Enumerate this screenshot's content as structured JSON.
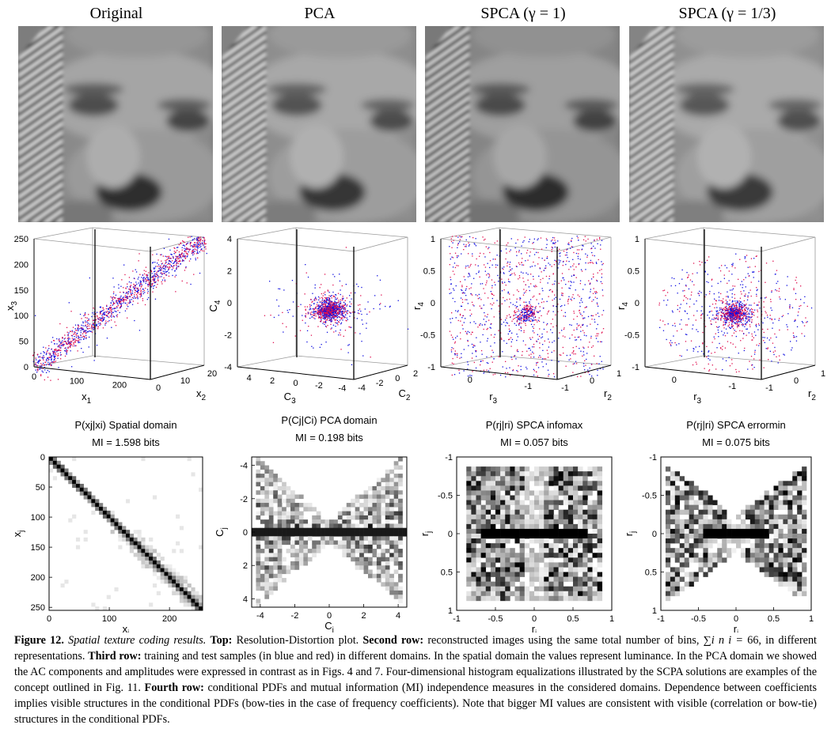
{
  "columns": [
    {
      "id": "original",
      "title": "Original"
    },
    {
      "id": "pca",
      "title": "PCA"
    },
    {
      "id": "spca1",
      "title": "SPCA (γ = 1)"
    },
    {
      "id": "spca13",
      "title": "SPCA (γ = 1/3)"
    }
  ],
  "chart_data": [
    {
      "type": "scatter",
      "title": "",
      "xlabel": "x1",
      "ylabel": "x3",
      "zlabel": "x2",
      "xticks": [
        "0",
        "100",
        "200"
      ],
      "yticks": [
        "0",
        "50",
        "100",
        "150",
        "200",
        "250"
      ],
      "zticks": [
        "0",
        "10",
        "20"
      ],
      "ylim": [
        0,
        255
      ],
      "xlim": [
        0,
        255
      ],
      "zlim": [
        0,
        25
      ],
      "series": [
        {
          "values": []
        },
        {
          "values": []
        }
      ],
      "pattern": "diagonal"
    },
    {
      "type": "scatter",
      "title": "",
      "xlabel": "C3",
      "ylabel": "C4",
      "zlabel": "C2",
      "xticks": [
        "4",
        "2",
        "0",
        "-2",
        "-4"
      ],
      "yticks": [
        "4",
        "2",
        "0",
        "-2",
        "-4"
      ],
      "zticks": [
        "-4",
        "-2",
        "0",
        "2"
      ],
      "ylim": [
        -4.8,
        4.8
      ],
      "xlim": [
        -4.8,
        4.8
      ],
      "zlim": [
        -4.8,
        2.8
      ],
      "series": [
        {
          "values": []
        },
        {
          "values": []
        }
      ],
      "pattern": "center"
    },
    {
      "type": "scatter",
      "title": "",
      "xlabel": "r3",
      "ylabel": "r4",
      "zlabel": "r2",
      "xticks": [
        "0",
        "-1"
      ],
      "yticks": [
        "1",
        "0.5",
        "0",
        "-0.5",
        "-1"
      ],
      "zticks": [
        "-1",
        "0",
        "1"
      ],
      "ylim": [
        -1,
        1
      ],
      "xlim": [
        -1,
        1
      ],
      "zlim": [
        -1,
        1
      ],
      "series": [
        {
          "values": []
        },
        {
          "values": []
        }
      ],
      "pattern": "uniform"
    },
    {
      "type": "scatter",
      "title": "",
      "xlabel": "r3",
      "ylabel": "r4",
      "zlabel": "r2",
      "xticks": [
        "0",
        "-1"
      ],
      "yticks": [
        "1",
        "0.5",
        "0",
        "-0.5",
        "-1"
      ],
      "zticks": [
        "-1",
        "0",
        "1"
      ],
      "ylim": [
        -1,
        1
      ],
      "xlim": [
        -1,
        1
      ],
      "zlim": [
        -1,
        1
      ],
      "series": [
        {
          "values": []
        },
        {
          "values": []
        }
      ],
      "pattern": "concentrated"
    },
    {
      "type": "heatmap",
      "title": "P(xj|xi) Spatial domain",
      "mi": "MI = 1.598 bits",
      "xlabel": "xi",
      "ylabel": "xj",
      "xticks": [
        "0",
        "100",
        "200"
      ],
      "yticks": [
        "0",
        "50",
        "100",
        "150",
        "200",
        "250"
      ],
      "xlim": [
        0,
        255
      ],
      "ylim": [
        0,
        255
      ],
      "pattern": "diagonal"
    },
    {
      "type": "heatmap",
      "title": "P(Cj|Ci) PCA domain",
      "mi": "MI = 0.198 bits",
      "xlabel": "Ci",
      "ylabel": "Cj",
      "xticks": [
        "-4",
        "-2",
        "0",
        "2",
        "4"
      ],
      "yticks": [
        "-4",
        "-2",
        "0",
        "2",
        "4"
      ],
      "xlim": [
        -4.5,
        4.5
      ],
      "ylim": [
        -4.5,
        4.5
      ],
      "pattern": "bowtie-wide"
    },
    {
      "type": "heatmap",
      "title": "P(rj|ri) SPCA infomax",
      "mi": "MI = 0.057 bits",
      "xlabel": "ri",
      "ylabel": "rj",
      "xticks": [
        "-1",
        "-0.5",
        "0",
        "0.5",
        "1"
      ],
      "yticks": [
        "-1",
        "-0.5",
        "0",
        "0.5",
        "1"
      ],
      "xlim": [
        -1,
        1
      ],
      "ylim": [
        -1,
        1
      ],
      "pattern": "uniform-line"
    },
    {
      "type": "heatmap",
      "title": "P(rj|ri) SPCA errormin",
      "mi": "MI = 0.075 bits",
      "xlabel": "ri",
      "ylabel": "rj",
      "xticks": [
        "-1",
        "-0.5",
        "0",
        "0.5",
        "1"
      ],
      "yticks": [
        "-1",
        "-0.5",
        "0",
        "0.5",
        "1"
      ],
      "xlim": [
        -1,
        1
      ],
      "ylim": [
        -1,
        1
      ],
      "pattern": "bowtie-line"
    }
  ],
  "colors": {
    "train": "#1010e0",
    "test": "#e01050",
    "axis": "#000000",
    "box": "#9a9a9a"
  },
  "caption": {
    "label": "Figure 12.",
    "title": "Spatial texture coding results.",
    "top_label": "Top:",
    "top_text": "Resolution-Distortion plot.",
    "second_label": "Second row:",
    "second_text": "reconstructed images using the same total number of bins, ∑",
    "second_math": "i n i =",
    "second_text2": "66, in different representations.",
    "third_label": "Third row:",
    "third_text": "training and test samples (in blue and red) in different domains. In the spatial domain the values represent luminance. In the PCA domain we showed the AC components and amplitudes were expressed in contrast as in Figs. 4 and 7. Four-dimensional histogram equalizations illustrated by the SCPA solutions are examples of the concept outlined in Fig. 11.",
    "fourth_label": "Fourth row:",
    "fourth_text": "conditional PDFs and mutual information (MI) independence measures in the considered domains. Dependence between coefficients implies visible structures in the conditional PDFs (bow-ties in the case of frequency coefficients). Note that bigger MI values are consistent with visible (correlation or bow-tie) structures in the conditional PDFs."
  }
}
